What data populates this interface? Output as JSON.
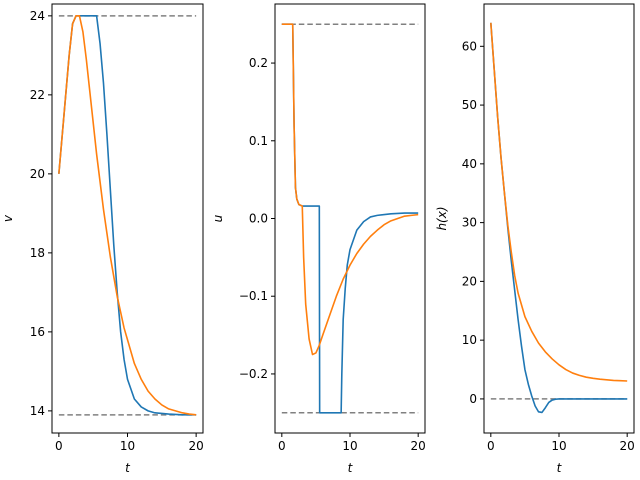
{
  "chart_data": [
    {
      "type": "line",
      "xlabel": "t",
      "ylabel": "v",
      "xlim": [
        -1,
        21
      ],
      "ylim": [
        13.44,
        24.3
      ],
      "xticks": [
        0,
        10,
        20
      ],
      "yticks": [
        14,
        16,
        18,
        20,
        22,
        24
      ],
      "ytick_labels": [
        "14",
        "16",
        "18",
        "20",
        "22",
        "24"
      ],
      "reference_lines": [
        {
          "y": 24.0,
          "style": "dashed",
          "color": "#808080"
        },
        {
          "y": 13.9,
          "style": "dashed",
          "color": "#808080"
        }
      ],
      "series": [
        {
          "color": "#1f77b4",
          "x": [
            0,
            0.5,
            1,
            1.5,
            2,
            2.5,
            3,
            4,
            5,
            5.5,
            6,
            6.5,
            7,
            7.5,
            8,
            8.5,
            9,
            9.5,
            10,
            11,
            12,
            13,
            14,
            16,
            18,
            20
          ],
          "y": [
            20.0,
            21.0,
            22.0,
            23.0,
            23.8,
            24.0,
            24.0,
            24.0,
            24.0,
            24.0,
            23.3,
            22.3,
            21.0,
            19.6,
            18.2,
            17.0,
            16.0,
            15.3,
            14.8,
            14.3,
            14.1,
            14.0,
            13.95,
            13.92,
            13.9,
            13.9
          ]
        },
        {
          "color": "#ff7f0e",
          "x": [
            0,
            0.5,
            1,
            1.5,
            2,
            2.5,
            3,
            3.5,
            4,
            4.5,
            5,
            5.5,
            6,
            6.5,
            7,
            7.5,
            8,
            8.5,
            9,
            9.5,
            10,
            11,
            12,
            13,
            14,
            15,
            16,
            17,
            18,
            19,
            20
          ],
          "y": [
            20.0,
            21.0,
            22.0,
            23.0,
            23.8,
            24.0,
            24.0,
            23.6,
            22.9,
            22.1,
            21.3,
            20.5,
            19.8,
            19.1,
            18.5,
            17.9,
            17.4,
            16.9,
            16.5,
            16.1,
            15.8,
            15.2,
            14.8,
            14.5,
            14.3,
            14.15,
            14.05,
            14.0,
            13.95,
            13.92,
            13.9
          ]
        }
      ]
    },
    {
      "type": "line",
      "xlabel": "t",
      "ylabel": "u",
      "xlim": [
        -1,
        21
      ],
      "ylim": [
        -0.276,
        0.276
      ],
      "xticks": [
        0,
        10,
        20
      ],
      "yticks": [
        -0.2,
        -0.1,
        0.0,
        0.1,
        0.2
      ],
      "ytick_labels": [
        "−0.2",
        "−0.1",
        "0.0",
        "0.1",
        "0.2"
      ],
      "reference_lines": [
        {
          "y": 0.25,
          "style": "dashed",
          "color": "#808080"
        },
        {
          "y": -0.25,
          "style": "dashed",
          "color": "#808080"
        }
      ],
      "series": [
        {
          "color": "#1f77b4",
          "x": [
            0,
            1.6,
            1.8,
            2.0,
            2.2,
            2.5,
            3,
            4,
            5,
            5.5,
            5.55,
            6,
            7,
            8,
            8.7,
            8.8,
            9.0,
            9.3,
            9.6,
            10,
            11,
            12,
            13,
            14,
            16,
            18,
            20
          ],
          "y": [
            0.25,
            0.25,
            0.12,
            0.04,
            0.025,
            0.018,
            0.016,
            0.016,
            0.016,
            0.016,
            -0.25,
            -0.25,
            -0.25,
            -0.25,
            -0.25,
            -0.2,
            -0.13,
            -0.09,
            -0.06,
            -0.04,
            -0.015,
            -0.004,
            0.002,
            0.004,
            0.006,
            0.007,
            0.007
          ]
        },
        {
          "color": "#ff7f0e",
          "x": [
            0,
            1.6,
            1.8,
            2.0,
            2.2,
            2.5,
            3,
            3.2,
            3.5,
            4,
            4.5,
            5,
            5.5,
            6,
            7,
            8,
            9,
            10,
            11,
            12,
            13,
            14,
            15,
            16,
            17,
            18,
            19,
            20
          ],
          "y": [
            0.25,
            0.25,
            0.12,
            0.04,
            0.025,
            0.018,
            0.016,
            -0.05,
            -0.11,
            -0.155,
            -0.175,
            -0.173,
            -0.163,
            -0.15,
            -0.125,
            -0.1,
            -0.078,
            -0.06,
            -0.045,
            -0.033,
            -0.023,
            -0.015,
            -0.008,
            -0.003,
            0.0,
            0.003,
            0.004,
            0.005
          ]
        }
      ]
    },
    {
      "type": "line",
      "xlabel": "t",
      "ylabel": "h(x)",
      "xlim": [
        -1,
        21
      ],
      "ylim": [
        -5.8,
        67.2
      ],
      "xticks": [
        0,
        10,
        20
      ],
      "yticks": [
        0,
        10,
        20,
        30,
        40,
        50,
        60
      ],
      "ytick_labels": [
        "0",
        "10",
        "20",
        "30",
        "40",
        "50",
        "60"
      ],
      "reference_lines": [
        {
          "y": 0,
          "style": "dashed",
          "color": "#808080"
        }
      ],
      "series": [
        {
          "color": "#1f77b4",
          "x": [
            0,
            0.5,
            1,
            1.5,
            2,
            2.5,
            3,
            3.5,
            4,
            4.5,
            5,
            5.5,
            6,
            6.5,
            7,
            7.5,
            8,
            8.5,
            9,
            9.5,
            10,
            11,
            12,
            14,
            16,
            18,
            20
          ],
          "y": [
            64,
            56,
            48,
            41,
            35,
            29,
            23.5,
            18.5,
            13.5,
            9,
            5,
            2.5,
            0.5,
            -1.2,
            -2.2,
            -2.3,
            -1.5,
            -0.6,
            -0.2,
            -0.05,
            0,
            0,
            0,
            0,
            0,
            0,
            0
          ]
        },
        {
          "color": "#ff7f0e",
          "x": [
            0,
            0.5,
            1,
            1.5,
            2,
            2.5,
            3,
            3.5,
            4,
            5,
            6,
            7,
            8,
            9,
            10,
            11,
            12,
            13,
            14,
            15,
            16,
            17,
            18,
            19,
            20
          ],
          "y": [
            64,
            56,
            48,
            41,
            35,
            29.5,
            25,
            21,
            18,
            14,
            11.5,
            9.5,
            8,
            6.8,
            5.8,
            5.0,
            4.4,
            4.0,
            3.7,
            3.5,
            3.35,
            3.25,
            3.15,
            3.1,
            3.05
          ]
        }
      ]
    }
  ]
}
